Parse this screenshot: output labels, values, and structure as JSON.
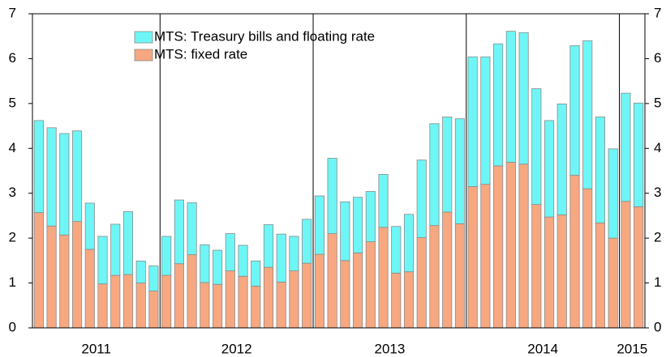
{
  "chart_data": {
    "type": "stacked_bar",
    "categories": [
      "2011",
      null,
      null,
      null,
      null,
      null,
      null,
      null,
      null,
      null,
      "2012",
      null,
      null,
      null,
      null,
      null,
      null,
      null,
      null,
      null,
      null,
      null,
      "2013",
      null,
      null,
      null,
      null,
      null,
      null,
      null,
      null,
      null,
      null,
      null,
      "2014",
      null,
      null,
      null,
      null,
      null,
      null,
      null,
      null,
      null,
      null,
      null,
      "2015",
      null
    ],
    "series": [
      {
        "name": "MTS: fixed rate",
        "color": "#f7a880",
        "values": [
          2.57,
          2.27,
          2.07,
          2.37,
          1.75,
          0.98,
          1.17,
          1.19,
          1.0,
          0.82,
          1.17,
          1.43,
          1.63,
          1.01,
          0.97,
          1.27,
          1.15,
          0.93,
          1.35,
          1.02,
          1.27,
          1.44,
          1.64,
          2.1,
          1.5,
          1.67,
          1.92,
          2.24,
          1.22,
          1.25,
          2.01,
          2.28,
          2.58,
          2.32,
          3.15,
          3.2,
          3.61,
          3.69,
          3.65,
          2.75,
          2.47,
          2.52,
          3.4,
          3.1,
          2.34,
          2.0,
          2.82,
          2.7
        ]
      },
      {
        "name": "MTS: Treasury bills and floating rate",
        "color": "#6ef6f6",
        "values": [
          2.05,
          2.19,
          2.26,
          2.02,
          1.03,
          1.06,
          1.14,
          1.4,
          0.49,
          0.56,
          0.87,
          1.42,
          1.16,
          0.84,
          0.76,
          0.83,
          0.69,
          0.56,
          0.95,
          1.07,
          0.77,
          0.98,
          1.3,
          1.68,
          1.31,
          1.24,
          1.12,
          1.18,
          1.04,
          1.28,
          1.73,
          2.27,
          2.12,
          2.34,
          2.89,
          2.84,
          2.72,
          2.92,
          2.93,
          2.58,
          2.15,
          2.47,
          2.89,
          3.3,
          2.36,
          1.99,
          2.41,
          2.31
        ]
      }
    ],
    "ylim": [
      0,
      7
    ],
    "yticks": [
      0,
      1,
      2,
      3,
      4,
      5,
      6,
      7
    ],
    "y2lim": [
      0,
      7
    ],
    "y2ticks": [
      0,
      1,
      2,
      3,
      4,
      5,
      6,
      7
    ],
    "legend": "upper-left"
  }
}
